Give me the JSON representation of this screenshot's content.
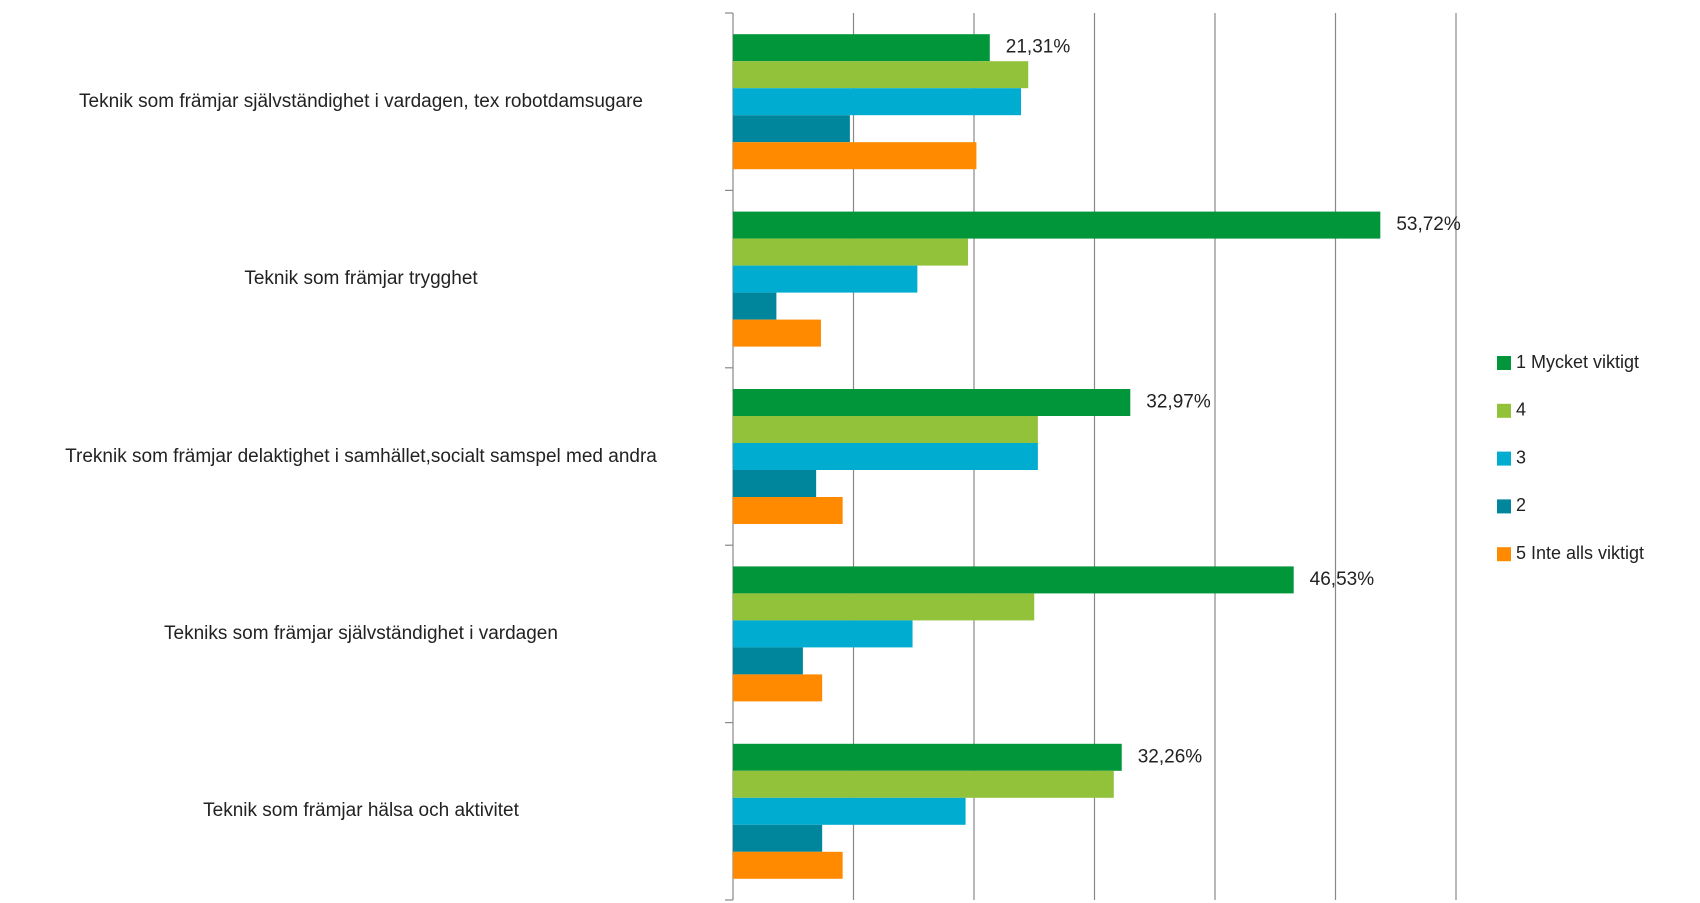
{
  "chart_data": {
    "type": "hbar",
    "categories": [
      "Teknik som främjar självständighet i vardagen, tex robotdamsugare",
      "Teknik som främjar trygghet",
      "Treknik som främjar delaktighet i samhället,socialt samspel med andra",
      "Tekniks som främjar självständighet i vardagen",
      "Teknik som främjar hälsa och aktivitet"
    ],
    "series": [
      {
        "name": "1 Mycket viktigt",
        "color": "#009639",
        "values": [
          21.31,
          53.72,
          32.97,
          46.53,
          32.26
        ],
        "value_labels": [
          "21,31%",
          "53,72%",
          "32,97%",
          "46,53%",
          "32,26%"
        ]
      },
      {
        "name": "4",
        "color": "#92c13a",
        "values": [
          24.5,
          19.5,
          25.3,
          25.0,
          31.6
        ]
      },
      {
        "name": "3",
        "color": "#00acd0",
        "values": [
          23.9,
          15.3,
          25.3,
          14.9,
          19.3
        ]
      },
      {
        "name": "2",
        "color": "#00869c",
        "values": [
          9.7,
          3.6,
          6.9,
          5.8,
          7.4
        ]
      },
      {
        "name": "5 Inte alls viktigt",
        "color": "#ff8a00",
        "values": [
          20.2,
          7.3,
          9.1,
          7.4,
          9.1
        ]
      }
    ],
    "xlim": [
      0,
      60
    ],
    "xticks": [
      0,
      10,
      20,
      30,
      40,
      50,
      60
    ],
    "grid": true,
    "legend": "right"
  }
}
